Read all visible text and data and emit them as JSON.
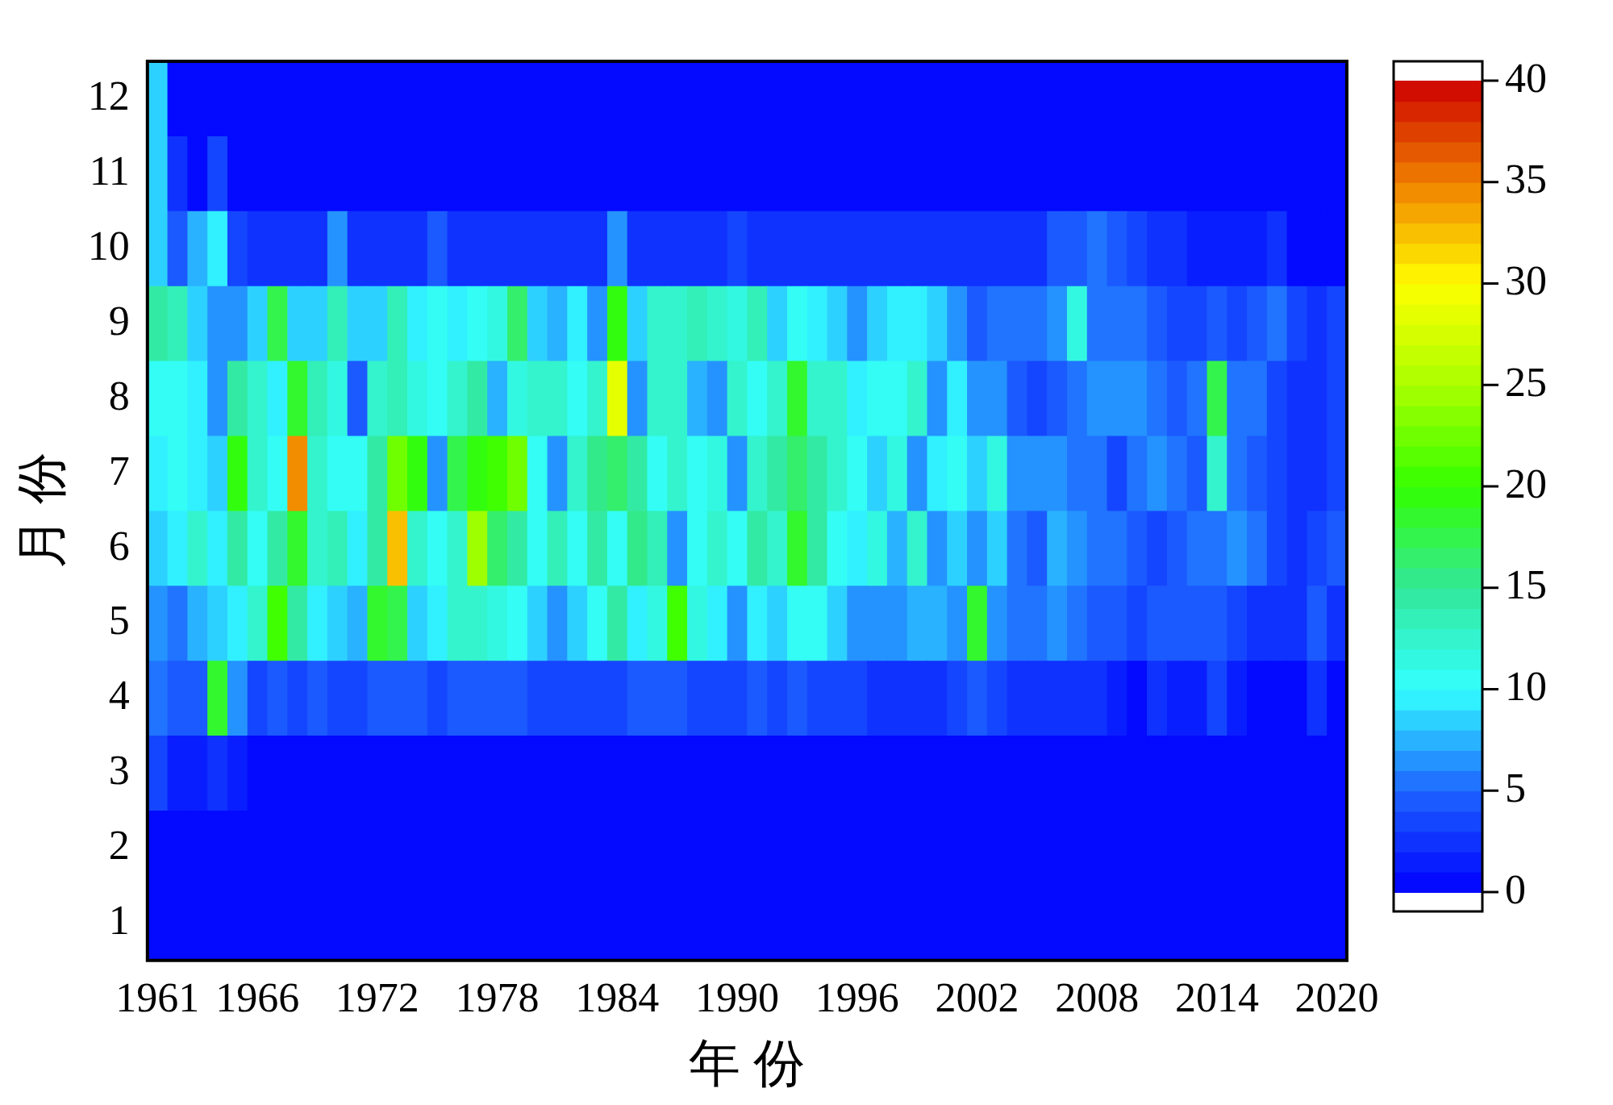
{
  "chart_data": {
    "type": "heatmap",
    "xlabel": "年 份",
    "ylabel": "月 份",
    "categories": [
      "1961",
      null,
      null,
      null,
      null,
      "1966",
      null,
      null,
      null,
      null,
      null,
      "1972",
      null,
      null,
      null,
      null,
      null,
      "1978",
      null,
      null,
      null,
      null,
      null,
      "1984",
      null,
      null,
      null,
      null,
      null,
      "1990",
      null,
      null,
      null,
      null,
      null,
      "1996",
      null,
      null,
      null,
      null,
      null,
      "2002",
      null,
      null,
      null,
      null,
      null,
      "2008",
      null,
      null,
      null,
      null,
      null,
      "2014",
      null,
      null,
      null,
      null,
      null,
      "2020"
    ],
    "y_categories": [
      "12",
      "11",
      "10",
      "9",
      "8",
      "7",
      "6",
      "5",
      "4",
      "3",
      "2",
      "1"
    ],
    "cells": [
      [
        8,
        0,
        0,
        0,
        0,
        0,
        0,
        0,
        0,
        0,
        0,
        0,
        0,
        0,
        0,
        0,
        0,
        0,
        0,
        0,
        0,
        0,
        0,
        0,
        0,
        0,
        0,
        0,
        0,
        0,
        0,
        0,
        0,
        0,
        0,
        0,
        0,
        0,
        0,
        0,
        0,
        0,
        0,
        0,
        0,
        0,
        0,
        0,
        0,
        0,
        0,
        0,
        0,
        0,
        0,
        0,
        0,
        0,
        0,
        0
      ],
      [
        8,
        2,
        0,
        3,
        0,
        0,
        0,
        0,
        0,
        0,
        0,
        0,
        0,
        0,
        0,
        0,
        0,
        0,
        0,
        0,
        0,
        0,
        0,
        0,
        0,
        0,
        0,
        0,
        0,
        0,
        0,
        0,
        0,
        0,
        0,
        0,
        0,
        0,
        0,
        0,
        0,
        0,
        0,
        0,
        0,
        0,
        0,
        0,
        0,
        0,
        0,
        0,
        0,
        0,
        0,
        0,
        0,
        0,
        0,
        0
      ],
      [
        8,
        4,
        7,
        9,
        3,
        2,
        2,
        2,
        2,
        6,
        2,
        2,
        2,
        2,
        4,
        2,
        2,
        2,
        2,
        2,
        2,
        2,
        2,
        6,
        2,
        2,
        2,
        2,
        2,
        3,
        2,
        2,
        2,
        2,
        2,
        2,
        2,
        2,
        2,
        2,
        2,
        2,
        2,
        2,
        2,
        4,
        4,
        5,
        4,
        3,
        2,
        2,
        1,
        1,
        1,
        1,
        2,
        0,
        0,
        0
      ],
      [
        14,
        13,
        8,
        6,
        6,
        8,
        17,
        8,
        8,
        13,
        8,
        8,
        13,
        9,
        10,
        9,
        10,
        11,
        16,
        8,
        7,
        9,
        6,
        19,
        8,
        12,
        12,
        13,
        12,
        11,
        13,
        8,
        10,
        9,
        8,
        6,
        8,
        9,
        9,
        8,
        6,
        4,
        5,
        5,
        5,
        6,
        11,
        5,
        5,
        5,
        4,
        3,
        3,
        4,
        3,
        4,
        5,
        3,
        2,
        3
      ],
      [
        10,
        10,
        9,
        6,
        14,
        12,
        9,
        18,
        13,
        11,
        4,
        12,
        13,
        11,
        10,
        12,
        14,
        7,
        11,
        12,
        12,
        10,
        12,
        28,
        6,
        12,
        12,
        7,
        6,
        12,
        10,
        12,
        18,
        12,
        12,
        9,
        10,
        10,
        12,
        6,
        9,
        6,
        6,
        4,
        3,
        4,
        5,
        6,
        6,
        6,
        5,
        4,
        5,
        17,
        5,
        5,
        3,
        2,
        2,
        3
      ],
      [
        9,
        10,
        9,
        8,
        19,
        12,
        10,
        34,
        12,
        10,
        10,
        14,
        22,
        19,
        6,
        17,
        19,
        20,
        22,
        10,
        6,
        12,
        15,
        16,
        14,
        10,
        12,
        10,
        11,
        6,
        12,
        14,
        16,
        14,
        12,
        10,
        8,
        11,
        6,
        9,
        10,
        8,
        11,
        6,
        6,
        6,
        5,
        5,
        3,
        5,
        6,
        5,
        4,
        12,
        5,
        4,
        3,
        2,
        2,
        3
      ],
      [
        8,
        9,
        12,
        9,
        14,
        10,
        14,
        18,
        12,
        13,
        9,
        14,
        32,
        12,
        10,
        12,
        24,
        16,
        14,
        10,
        13,
        10,
        14,
        10,
        15,
        13,
        6,
        10,
        12,
        10,
        14,
        12,
        18,
        14,
        10,
        9,
        11,
        7,
        12,
        6,
        8,
        6,
        8,
        5,
        4,
        7,
        6,
        5,
        5,
        4,
        3,
        4,
        5,
        5,
        6,
        5,
        3,
        2,
        3,
        4
      ],
      [
        6,
        5,
        7,
        8,
        9,
        12,
        20,
        14,
        9,
        8,
        7,
        18,
        17,
        8,
        9,
        12,
        12,
        11,
        10,
        8,
        6,
        8,
        10,
        14,
        9,
        11,
        20,
        11,
        9,
        6,
        9,
        8,
        10,
        10,
        8,
        6,
        6,
        6,
        7,
        7,
        6,
        18,
        6,
        5,
        5,
        6,
        5,
        4,
        4,
        3,
        4,
        4,
        4,
        4,
        3,
        2,
        2,
        2,
        4,
        2
      ],
      [
        5,
        4,
        4,
        18,
        6,
        3,
        4,
        3,
        4,
        3,
        3,
        4,
        4,
        4,
        3,
        4,
        4,
        4,
        4,
        3,
        3,
        3,
        3,
        3,
        4,
        4,
        4,
        3,
        3,
        3,
        4,
        3,
        4,
        3,
        3,
        3,
        2,
        2,
        2,
        2,
        3,
        4,
        3,
        2,
        2,
        2,
        2,
        2,
        1,
        0,
        2,
        1,
        1,
        3,
        1,
        0,
        0,
        0,
        2,
        0
      ],
      [
        3,
        1,
        1,
        2,
        1,
        0,
        0,
        0,
        0,
        0,
        0,
        0,
        0,
        0,
        0,
        0,
        0,
        0,
        0,
        0,
        0,
        0,
        0,
        0,
        0,
        0,
        0,
        0,
        0,
        0,
        0,
        0,
        0,
        0,
        0,
        0,
        0,
        0,
        0,
        0,
        0,
        0,
        0,
        0,
        0,
        0,
        0,
        0,
        0,
        0,
        0,
        0,
        0,
        0,
        0,
        0,
        0,
        0,
        0,
        0
      ],
      [
        0,
        0,
        0,
        0,
        0,
        0,
        0,
        0,
        0,
        0,
        0,
        0,
        0,
        0,
        0,
        0,
        0,
        0,
        0,
        0,
        0,
        0,
        0,
        0,
        0,
        0,
        0,
        0,
        0,
        0,
        0,
        0,
        0,
        0,
        0,
        0,
        0,
        0,
        0,
        0,
        0,
        0,
        0,
        0,
        0,
        0,
        0,
        0,
        0,
        0,
        0,
        0,
        0,
        0,
        0,
        0,
        0,
        0,
        0,
        0
      ],
      [
        0,
        0,
        0,
        0,
        0,
        0,
        0,
        0,
        0,
        0,
        0,
        0,
        0,
        0,
        0,
        0,
        0,
        0,
        0,
        0,
        0,
        0,
        0,
        0,
        0,
        0,
        0,
        0,
        0,
        0,
        0,
        0,
        0,
        0,
        0,
        0,
        0,
        0,
        0,
        0,
        0,
        0,
        0,
        0,
        0,
        0,
        0,
        0,
        0,
        0,
        0,
        0,
        0,
        0,
        0,
        0,
        0,
        0,
        0,
        0
      ]
    ],
    "clim": [
      0,
      40
    ],
    "cticks": [
      0,
      5,
      10,
      15,
      20,
      25,
      30,
      35,
      40
    ]
  }
}
